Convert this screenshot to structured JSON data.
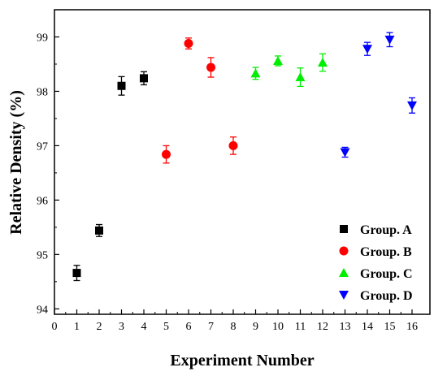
{
  "chart_data": {
    "type": "scatter",
    "title": "",
    "xlabel": "Experiment Number",
    "ylabel": "Relative Density (%)",
    "xlim": [
      0,
      16.8
    ],
    "ylim": [
      93.9,
      99.5
    ],
    "x_ticks": [
      0,
      1,
      2,
      3,
      4,
      5,
      6,
      7,
      8,
      9,
      10,
      11,
      12,
      13,
      14,
      15,
      16
    ],
    "y_ticks": [
      94,
      95,
      96,
      97,
      98,
      99
    ],
    "grid": false,
    "legend_position": "bottom-right",
    "series": [
      {
        "name": "Group. A",
        "marker": "square",
        "color": "#000000",
        "points": [
          {
            "x": 1,
            "y": 94.66,
            "err": 0.14
          },
          {
            "x": 2,
            "y": 95.44,
            "err": 0.11
          },
          {
            "x": 3,
            "y": 98.1,
            "err": 0.17
          },
          {
            "x": 4,
            "y": 98.24,
            "err": 0.12
          }
        ]
      },
      {
        "name": "Group. B",
        "marker": "circle",
        "color": "#ff0000",
        "points": [
          {
            "x": 5,
            "y": 96.84,
            "err": 0.16
          },
          {
            "x": 6,
            "y": 98.88,
            "err": 0.1
          },
          {
            "x": 7,
            "y": 98.44,
            "err": 0.18
          },
          {
            "x": 8,
            "y": 97.0,
            "err": 0.16
          }
        ]
      },
      {
        "name": "Group. C",
        "marker": "triangle-up",
        "color": "#00ee00",
        "points": [
          {
            "x": 9,
            "y": 98.33,
            "err": 0.11
          },
          {
            "x": 10,
            "y": 98.56,
            "err": 0.09
          },
          {
            "x": 11,
            "y": 98.26,
            "err": 0.17
          },
          {
            "x": 12,
            "y": 98.53,
            "err": 0.16
          }
        ]
      },
      {
        "name": "Group. D",
        "marker": "triangle-down",
        "color": "#0000ff",
        "points": [
          {
            "x": 13,
            "y": 96.88,
            "err": 0.09
          },
          {
            "x": 14,
            "y": 98.78,
            "err": 0.12
          },
          {
            "x": 15,
            "y": 98.95,
            "err": 0.13
          },
          {
            "x": 16,
            "y": 97.74,
            "err": 0.14
          }
        ]
      }
    ]
  }
}
